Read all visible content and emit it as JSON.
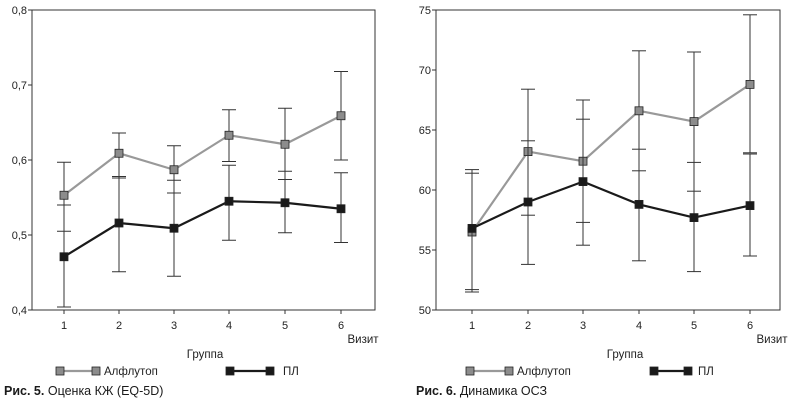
{
  "chart_data": [
    {
      "type": "line",
      "caption_label": "Рис. 5.",
      "caption_text": "Оценка КЖ (EQ-5D)",
      "xlabel": "Визит",
      "legend_title": "Группа",
      "x": [
        1,
        2,
        3,
        4,
        5,
        6
      ],
      "xticks": [
        "1",
        "2",
        "3",
        "4",
        "5",
        "6"
      ],
      "ylim": [
        0.4,
        0.8
      ],
      "yticks": [
        0.4,
        0.5,
        0.6,
        0.7,
        0.8
      ],
      "ytick_labels": [
        "0,4",
        "0,5",
        "0,6",
        "0,7",
        "0,8"
      ],
      "grid": false,
      "legend_position": "bottom",
      "series": [
        {
          "name": "Алфлутоп",
          "color": "#999999",
          "marker_color": "#8c8c8c",
          "values": [
            0.553,
            0.609,
            0.587,
            0.633,
            0.621,
            0.659
          ],
          "err_low": [
            0.505,
            0.576,
            0.556,
            0.598,
            0.574,
            0.6
          ],
          "err_high": [
            0.597,
            0.636,
            0.619,
            0.667,
            0.669,
            0.718
          ]
        },
        {
          "name": "ПЛ",
          "color": "#1a1a1a",
          "marker_color": "#1a1a1a",
          "values": [
            0.471,
            0.516,
            0.509,
            0.545,
            0.543,
            0.535
          ],
          "err_low": [
            0.404,
            0.451,
            0.445,
            0.493,
            0.503,
            0.49
          ],
          "err_high": [
            0.54,
            0.578,
            0.573,
            0.593,
            0.585,
            0.583
          ]
        }
      ]
    },
    {
      "type": "line",
      "caption_label": "Рис. 6.",
      "caption_text": "Динамика ОСЗ",
      "xlabel": "Визит",
      "legend_title": "Группа",
      "x": [
        1,
        2,
        3,
        4,
        5,
        6
      ],
      "xticks": [
        "1",
        "2",
        "3",
        "4",
        "5",
        "6"
      ],
      "ylim": [
        50,
        75
      ],
      "yticks": [
        50,
        55,
        60,
        65,
        70,
        75
      ],
      "ytick_labels": [
        "50",
        "55",
        "60",
        "65",
        "70",
        "75"
      ],
      "grid": false,
      "legend_position": "bottom",
      "series": [
        {
          "name": "Алфлутоп",
          "color": "#999999",
          "marker_color": "#8c8c8c",
          "values": [
            56.5,
            63.2,
            62.4,
            66.6,
            65.7,
            68.8
          ],
          "err_low": [
            51.5,
            57.9,
            57.3,
            61.6,
            59.9,
            63.1
          ],
          "err_high": [
            61.7,
            68.4,
            67.5,
            71.6,
            71.5,
            74.6
          ]
        },
        {
          "name": "ПЛ",
          "color": "#1a1a1a",
          "marker_color": "#1a1a1a",
          "values": [
            56.8,
            59.0,
            60.7,
            58.8,
            57.7,
            58.7
          ],
          "err_low": [
            51.7,
            53.8,
            55.4,
            54.1,
            53.2,
            54.5
          ],
          "err_high": [
            61.4,
            64.1,
            65.9,
            63.4,
            62.3,
            63.0
          ]
        }
      ]
    }
  ]
}
